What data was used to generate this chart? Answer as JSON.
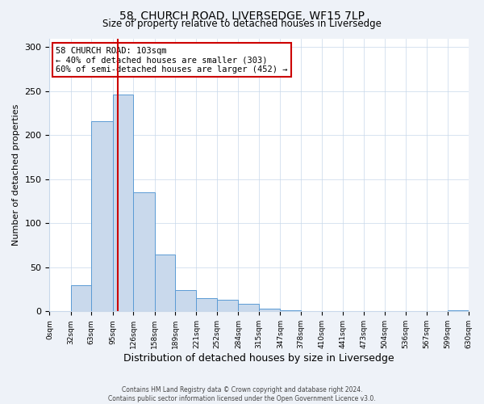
{
  "title1": "58, CHURCH ROAD, LIVERSEDGE, WF15 7LP",
  "title2": "Size of property relative to detached houses in Liversedge",
  "xlabel": "Distribution of detached houses by size in Liversedge",
  "ylabel": "Number of detached properties",
  "bin_edges": [
    0,
    32,
    63,
    95,
    126,
    158,
    189,
    221,
    252,
    284,
    315,
    347,
    378,
    410,
    441,
    473,
    504,
    536,
    567,
    599,
    630
  ],
  "bar_heights": [
    0,
    30,
    216,
    246,
    135,
    65,
    24,
    15,
    13,
    9,
    3,
    1,
    0,
    0,
    0,
    0,
    0,
    0,
    0,
    1
  ],
  "bar_color": "#c9d9ec",
  "bar_edge_color": "#5b9bd5",
  "vline_color": "#cc0000",
  "vline_x": 103,
  "annotation_text": "58 CHURCH ROAD: 103sqm\n← 40% of detached houses are smaller (303)\n60% of semi-detached houses are larger (452) →",
  "annotation_box_color": "#ffffff",
  "annotation_box_edge_color": "#cc0000",
  "tick_labels": [
    "0sqm",
    "32sqm",
    "63sqm",
    "95sqm",
    "126sqm",
    "158sqm",
    "189sqm",
    "221sqm",
    "252sqm",
    "284sqm",
    "315sqm",
    "347sqm",
    "378sqm",
    "410sqm",
    "441sqm",
    "473sqm",
    "504sqm",
    "536sqm",
    "567sqm",
    "599sqm",
    "630sqm"
  ],
  "ylim": [
    0,
    310
  ],
  "yticks": [
    0,
    50,
    100,
    150,
    200,
    250,
    300
  ],
  "footer1": "Contains HM Land Registry data © Crown copyright and database right 2024.",
  "footer2": "Contains public sector information licensed under the Open Government Licence v3.0.",
  "bg_color": "#eef2f8",
  "plot_bg_color": "#ffffff"
}
